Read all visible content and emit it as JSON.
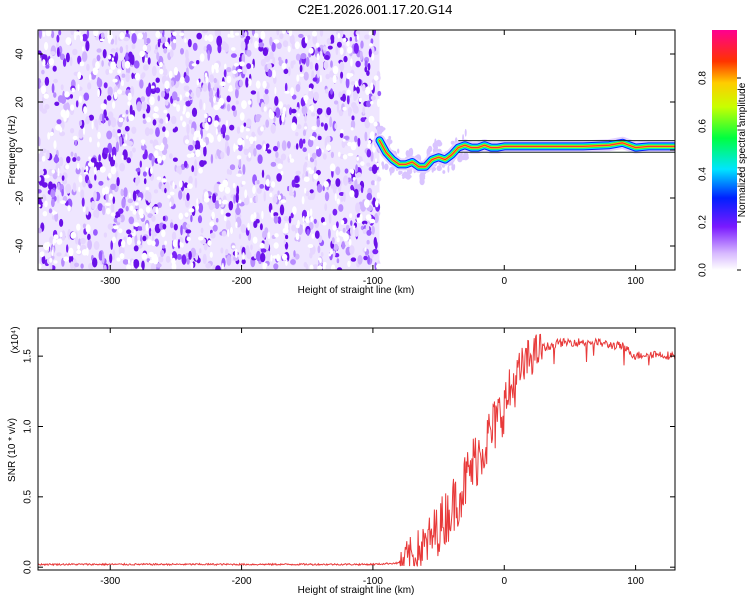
{
  "title": "C2E1.2026.001.17.20.G14",
  "chart_data": [
    {
      "type": "heatmap",
      "xlabel": "Height of straight line (km)",
      "ylabel": "Frequency (Hz)",
      "xlim": [
        -355,
        130
      ],
      "ylim": [
        -50,
        50
      ],
      "xticks": [
        -300,
        -200,
        -100,
        0,
        100
      ],
      "yticks": [
        -40,
        -20,
        0,
        20,
        40
      ],
      "noise_region_x": [
        -355,
        -95
      ],
      "signal_ridge": {
        "x": [
          -95,
          -90,
          -85,
          -80,
          -75,
          -70,
          -65,
          -60,
          -55,
          -50,
          -45,
          -40,
          -35,
          -30,
          -25,
          -20,
          -15,
          -10,
          -5,
          0,
          20,
          40,
          60,
          80,
          90,
          100,
          110,
          120,
          130
        ],
        "freq": [
          4,
          -1,
          -4,
          -6,
          -6,
          -5,
          -7,
          -7,
          -4,
          -3,
          -4,
          -2,
          1,
          2,
          1,
          1,
          2,
          1,
          1,
          1.5,
          1.5,
          1.5,
          1.5,
          2,
          3,
          1,
          1.5,
          1.5,
          1.5
        ]
      },
      "colorbar": {
        "label": "Normalized spectral amplitude",
        "ticks": [
          0.0,
          0.2,
          0.4,
          0.6,
          0.8
        ],
        "range": [
          0,
          1
        ]
      }
    },
    {
      "type": "line",
      "xlabel": "Height of straight line (km)",
      "ylabel": "SNR (10 * v/v)",
      "scale_label": "(x10⁴)",
      "xlim": [
        -355,
        130
      ],
      "ylim": [
        -0.02,
        1.7
      ],
      "xticks": [
        -300,
        -200,
        -100,
        0,
        100
      ],
      "yticks": [
        0.0,
        0.5,
        1.0,
        1.5
      ],
      "ytick_labels": [
        "0.0",
        "0.5",
        "1.0",
        "1.5"
      ],
      "color": "#e83a3a",
      "series": [
        {
          "name": "SNR",
          "x": [
            -355,
            -100,
            -80,
            -70,
            -60,
            -50,
            -40,
            -30,
            -20,
            -10,
            0,
            10,
            20,
            30,
            40,
            50,
            60,
            70,
            80,
            90,
            100,
            110,
            120,
            130
          ],
          "y": [
            0.02,
            0.02,
            0.03,
            0.08,
            0.15,
            0.28,
            0.42,
            0.6,
            0.8,
            0.95,
            1.15,
            1.35,
            1.5,
            1.56,
            1.59,
            1.6,
            1.6,
            1.6,
            1.58,
            1.57,
            1.5,
            1.52,
            1.51,
            1.5
          ]
        }
      ]
    }
  ]
}
